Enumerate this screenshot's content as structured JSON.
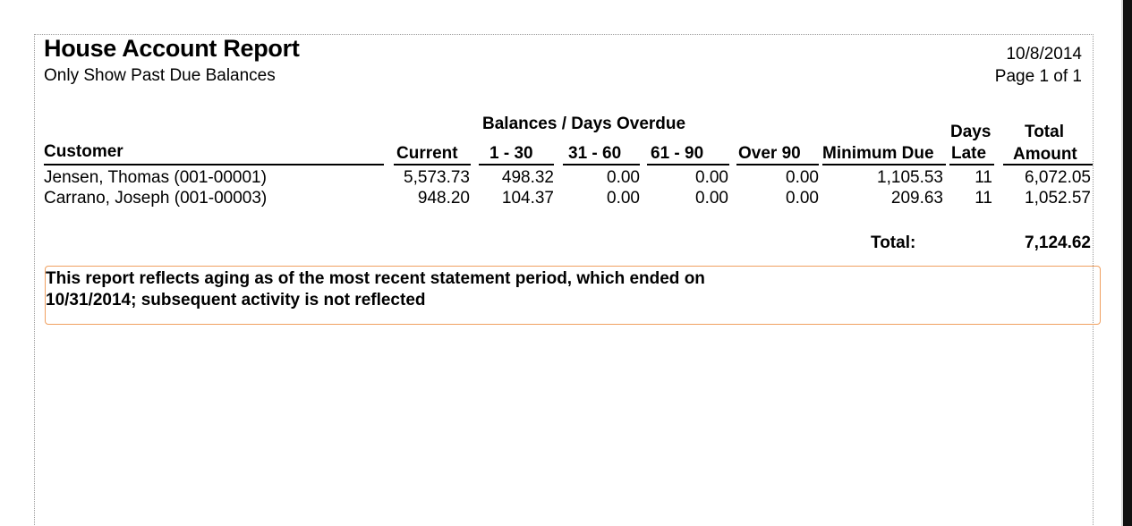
{
  "report": {
    "title": "House Account Report",
    "subtitle": "Only Show Past Due Balances",
    "date": "10/8/2014",
    "page": "Page 1 of 1"
  },
  "columns": {
    "group_header": "Balances / Days Overdue",
    "customer": "Customer",
    "current": "Current",
    "d1_30": "1 - 30",
    "d31_60": "31 - 60",
    "d61_90": "61 - 90",
    "over90": "Over 90",
    "minimum_due": "Minimum Due",
    "days_late_1": "Days",
    "days_late_2": "Late",
    "total_amount_1": "Total",
    "total_amount_2": "Amount"
  },
  "rows": [
    {
      "customer": "Jensen, Thomas (001-00001)",
      "current": "5,573.73",
      "d1_30": "498.32",
      "d31_60": "0.00",
      "d61_90": "0.00",
      "over90": "0.00",
      "minimum_due": "1,105.53",
      "days_late": "11",
      "total_amount": "6,072.05"
    },
    {
      "customer": "Carrano, Joseph (001-00003)",
      "current": "948.20",
      "d1_30": "104.37",
      "d31_60": "0.00",
      "d61_90": "0.00",
      "over90": "0.00",
      "minimum_due": "209.63",
      "days_late": "11",
      "total_amount": "1,052.57"
    }
  ],
  "totals": {
    "label": "Total:",
    "value": "7,124.62"
  },
  "notice": {
    "text": "This report reflects aging as of the most recent statement period, which ended on 10/31/2014; subsequent activity is not reflected"
  },
  "colors": {
    "notice_border": "#f0a060",
    "frame": "#111111"
  }
}
